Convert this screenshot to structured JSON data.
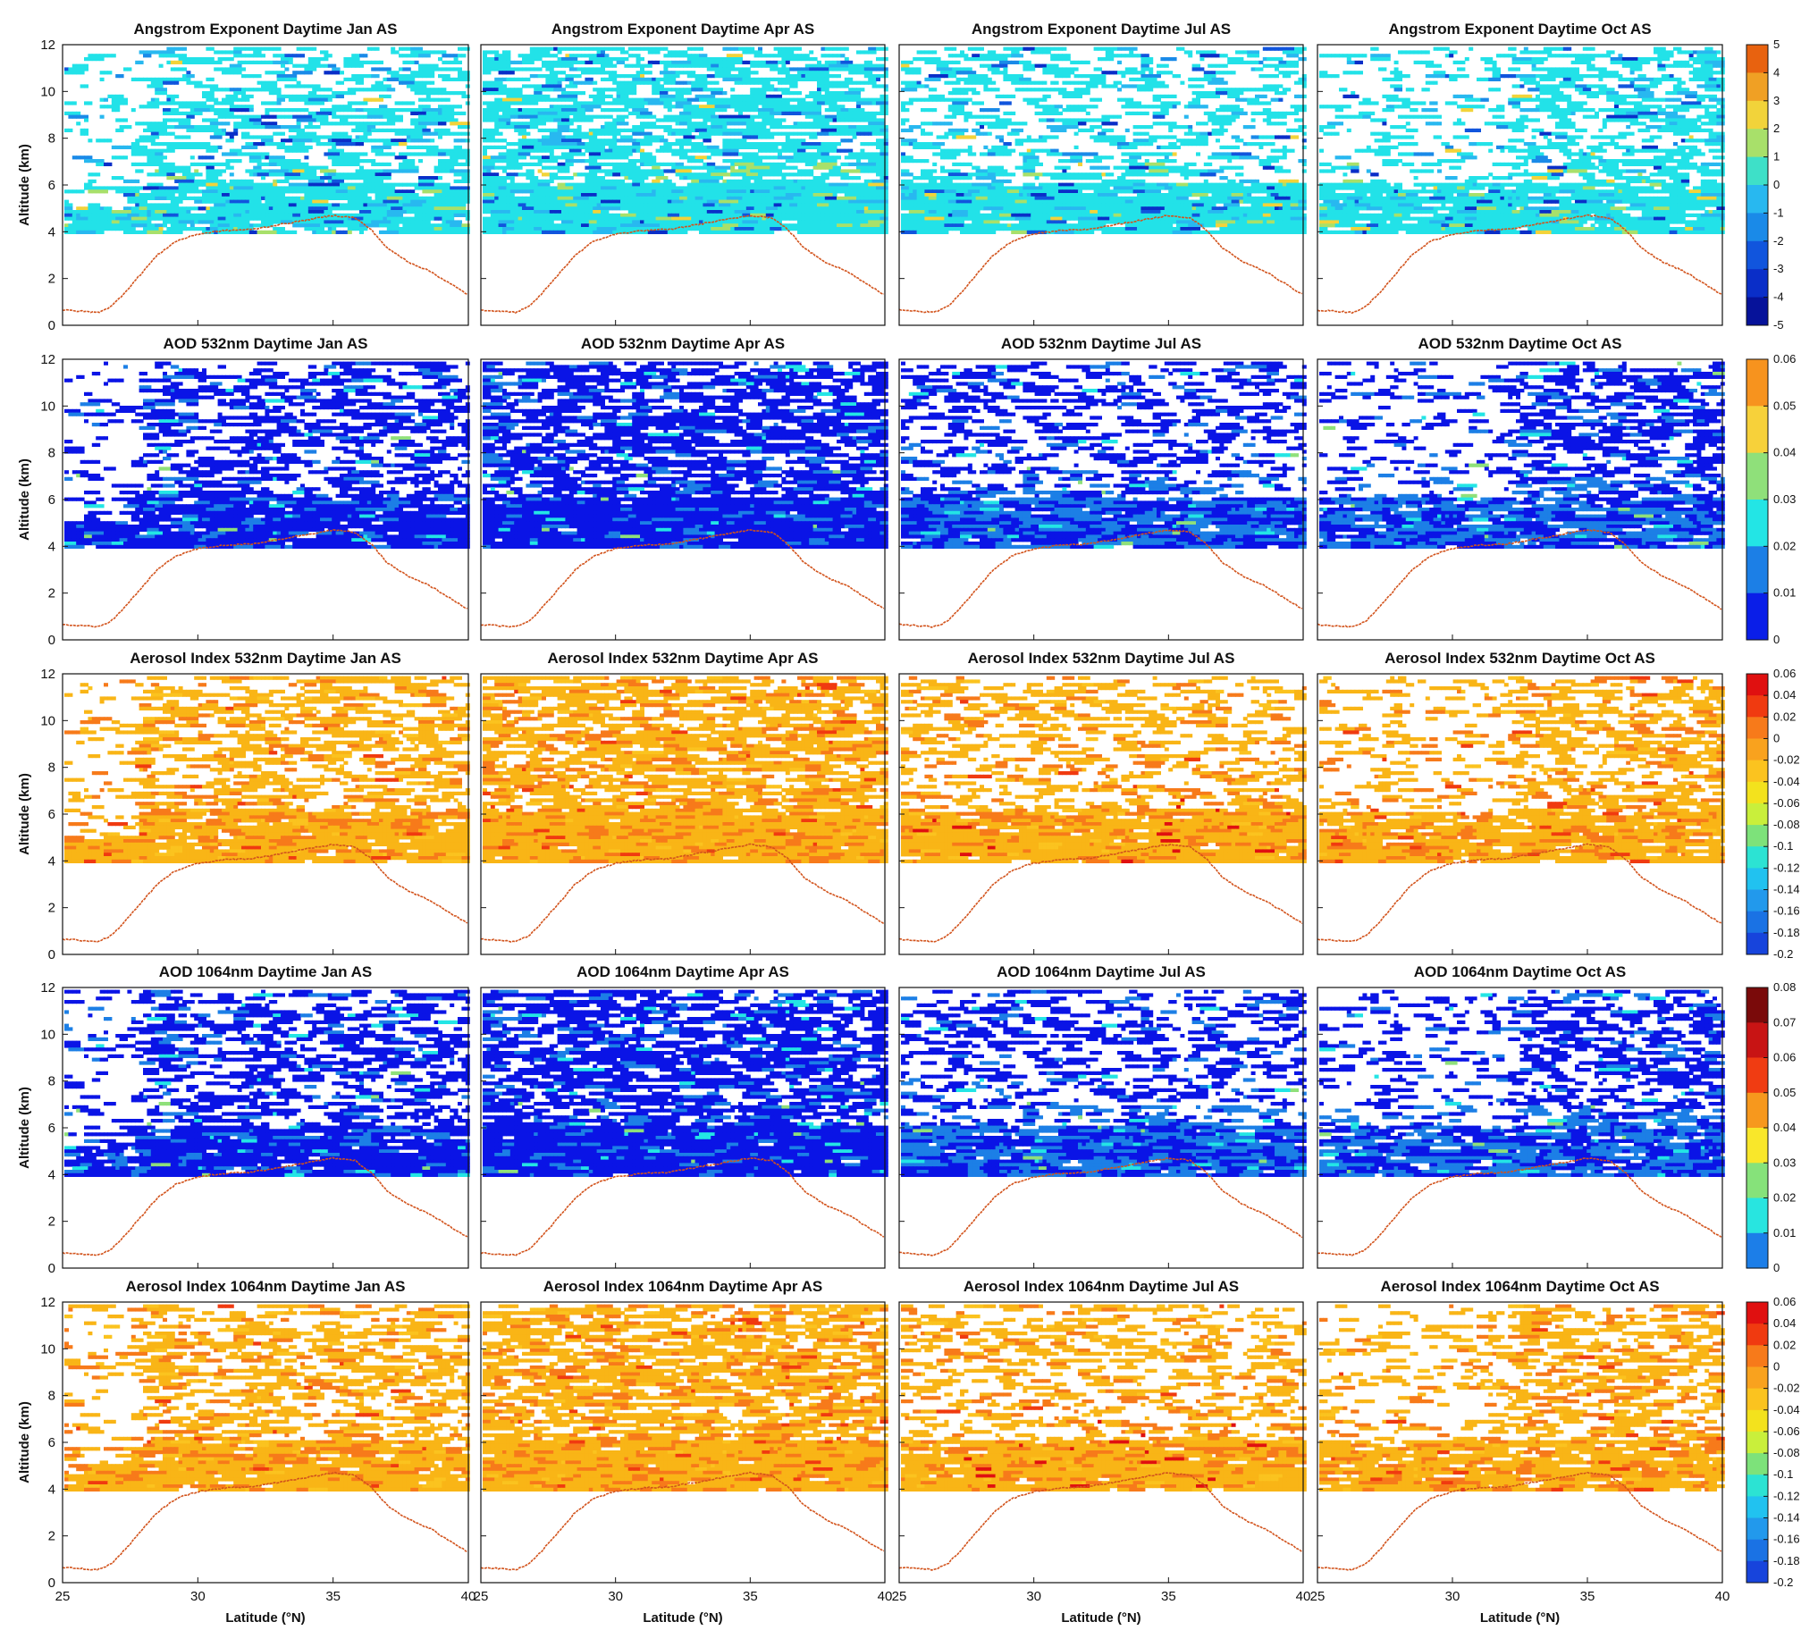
{
  "figure": {
    "row_variables": [
      "Angstrom Exponent",
      "AOD 532nm",
      "Aerosol Index 532nm",
      "AOD 1064nm",
      "Aerosol Index 1064nm"
    ],
    "months": [
      "Jan",
      "Apr",
      "Jul",
      "Oct"
    ],
    "ylabel": "Altitude (km)",
    "xlabel": "Latitude (°N)"
  },
  "chart_data": [
    {
      "type": "heatmap",
      "title": "Angstrom Exponent Daytime Jan AS",
      "ylabel": "Altitude (km)",
      "xlabel": "",
      "xlim": [
        25,
        40
      ],
      "ylim": [
        0,
        12
      ]
    },
    {
      "type": "heatmap",
      "title": "Angstrom Exponent Daytime Apr AS",
      "xlim": [
        25,
        40
      ],
      "ylim": [
        0,
        12
      ]
    },
    {
      "type": "heatmap",
      "title": "Angstrom Exponent Daytime Jul AS",
      "xlim": [
        25,
        40
      ],
      "ylim": [
        0,
        12
      ]
    },
    {
      "type": "heatmap",
      "title": "Angstrom Exponent Daytime Oct AS",
      "xlim": [
        25,
        40
      ],
      "ylim": [
        0,
        12
      ]
    },
    {
      "type": "heatmap",
      "title": "AOD 532nm Daytime Jan AS",
      "ylabel": "Altitude (km)",
      "xlim": [
        25,
        40
      ],
      "ylim": [
        0,
        12
      ]
    },
    {
      "type": "heatmap",
      "title": "AOD 532nm Daytime Apr AS",
      "xlim": [
        25,
        40
      ],
      "ylim": [
        0,
        12
      ]
    },
    {
      "type": "heatmap",
      "title": "AOD 532nm Daytime Jul AS",
      "xlim": [
        25,
        40
      ],
      "ylim": [
        0,
        12
      ]
    },
    {
      "type": "heatmap",
      "title": "AOD 532nm Daytime Oct AS",
      "xlim": [
        25,
        40
      ],
      "ylim": [
        0,
        12
      ]
    },
    {
      "type": "heatmap",
      "title": "Aerosol Index 532nm Daytime Jan AS",
      "ylabel": "Altitude (km)",
      "xlim": [
        25,
        40
      ],
      "ylim": [
        0,
        12
      ]
    },
    {
      "type": "heatmap",
      "title": "Aerosol Index 532nm Daytime Apr AS",
      "xlim": [
        25,
        40
      ],
      "ylim": [
        0,
        12
      ]
    },
    {
      "type": "heatmap",
      "title": "Aerosol Index 532nm Daytime Jul AS",
      "xlim": [
        25,
        40
      ],
      "ylim": [
        0,
        12
      ]
    },
    {
      "type": "heatmap",
      "title": "Aerosol Index 532nm Daytime Oct AS",
      "xlim": [
        25,
        40
      ],
      "ylim": [
        0,
        12
      ]
    },
    {
      "type": "heatmap",
      "title": "AOD 1064nm Daytime Jan AS",
      "ylabel": "Altitude (km)",
      "xlim": [
        25,
        40
      ],
      "ylim": [
        0,
        12
      ]
    },
    {
      "type": "heatmap",
      "title": "AOD 1064nm Daytime Apr AS",
      "xlim": [
        25,
        40
      ],
      "ylim": [
        0,
        12
      ]
    },
    {
      "type": "heatmap",
      "title": "AOD 1064nm Daytime Jul AS",
      "xlim": [
        25,
        40
      ],
      "ylim": [
        0,
        12
      ]
    },
    {
      "type": "heatmap",
      "title": "AOD 1064nm Daytime Oct AS",
      "xlim": [
        25,
        40
      ],
      "ylim": [
        0,
        12
      ]
    },
    {
      "type": "heatmap",
      "title": "Aerosol Index 1064nm Daytime Jan AS",
      "ylabel": "Altitude (km)",
      "xlabel": "Latitude (°N)",
      "xlim": [
        25,
        40
      ],
      "ylim": [
        0,
        12
      ]
    },
    {
      "type": "heatmap",
      "title": "Aerosol Index 1064nm Daytime Apr AS",
      "xlabel": "Latitude (°N)",
      "xlim": [
        25,
        40
      ],
      "ylim": [
        0,
        12
      ]
    },
    {
      "type": "heatmap",
      "title": "Aerosol Index 1064nm Daytime Jul AS",
      "xlabel": "Latitude (°N)",
      "xlim": [
        25,
        40
      ],
      "ylim": [
        0,
        12
      ]
    },
    {
      "type": "heatmap",
      "title": "Aerosol Index 1064nm Daytime Oct AS",
      "xlabel": "Latitude (°N)",
      "xlim": [
        25,
        40
      ],
      "ylim": [
        0,
        12
      ]
    }
  ],
  "axes": {
    "y_ticks": [
      0,
      2,
      4,
      6,
      8,
      10,
      12
    ],
    "x_ticks": [
      25,
      30,
      35,
      40
    ]
  },
  "colorbars": [
    {
      "row": 0,
      "ticks": [
        "5",
        "4",
        "3",
        "2",
        "1",
        "0",
        "-1",
        "-2",
        "-3",
        "-4",
        "-5"
      ],
      "colors": [
        "#e8620f",
        "#f0a024",
        "#f2d33a",
        "#a8e06a",
        "#3ee0c8",
        "#28b8f0",
        "#1a8ae8",
        "#1155dd",
        "#0a2ec8",
        "#06129a"
      ]
    },
    {
      "row": 1,
      "ticks": [
        "0.06",
        "0.05",
        "0.04",
        "0.03",
        "0.02",
        "0.01",
        "0"
      ],
      "colors": [
        "#f7931e",
        "#f7d13a",
        "#8fe07a",
        "#23e5e5",
        "#1c7fe6",
        "#0a1ee8"
      ]
    },
    {
      "row": 2,
      "ticks": [
        "0.06",
        "0.04",
        "0.02",
        "0",
        "-0.02",
        "-0.04",
        "-0.06",
        "-0.08",
        "-0.1",
        "-0.12",
        "-0.14",
        "-0.16",
        "-0.18",
        "-0.2"
      ],
      "colors": [
        "#e01010",
        "#f03a10",
        "#f77a1a",
        "#f9a21e",
        "#fbc31f",
        "#f3e21d",
        "#c9ef3b",
        "#7de27a",
        "#2ce3d3",
        "#21c2f0",
        "#2299ec",
        "#1a72e4",
        "#1744dc"
      ]
    },
    {
      "row": 3,
      "ticks": [
        "0.08",
        "0.07",
        "0.06",
        "0.05",
        "0.04",
        "0.03",
        "0.02",
        "0.01",
        "0"
      ],
      "colors": [
        "#7a0a0a",
        "#c81414",
        "#f03c12",
        "#f7981d",
        "#f9e72a",
        "#86e27a",
        "#28e5e0",
        "#1c7ee8"
      ]
    },
    {
      "row": 4,
      "ticks": [
        "0.06",
        "0.04",
        "0.02",
        "0",
        "-0.02",
        "-0.04",
        "-0.06",
        "-0.08",
        "-0.1",
        "-0.12",
        "-0.14",
        "-0.16",
        "-0.18",
        "-0.2"
      ],
      "colors": [
        "#e01010",
        "#f03a10",
        "#f77a1a",
        "#f9a21e",
        "#fbc31f",
        "#f3e21d",
        "#c9ef3b",
        "#7de27a",
        "#2ce3d3",
        "#21c2f0",
        "#2299ec",
        "#1a72e4",
        "#1744dc"
      ]
    }
  ],
  "colors": {
    "terrain": "#d2531c",
    "angstrom_base": "#22e2e8",
    "aod_base": "#0a14e6",
    "ai_base": "#f9b516"
  }
}
